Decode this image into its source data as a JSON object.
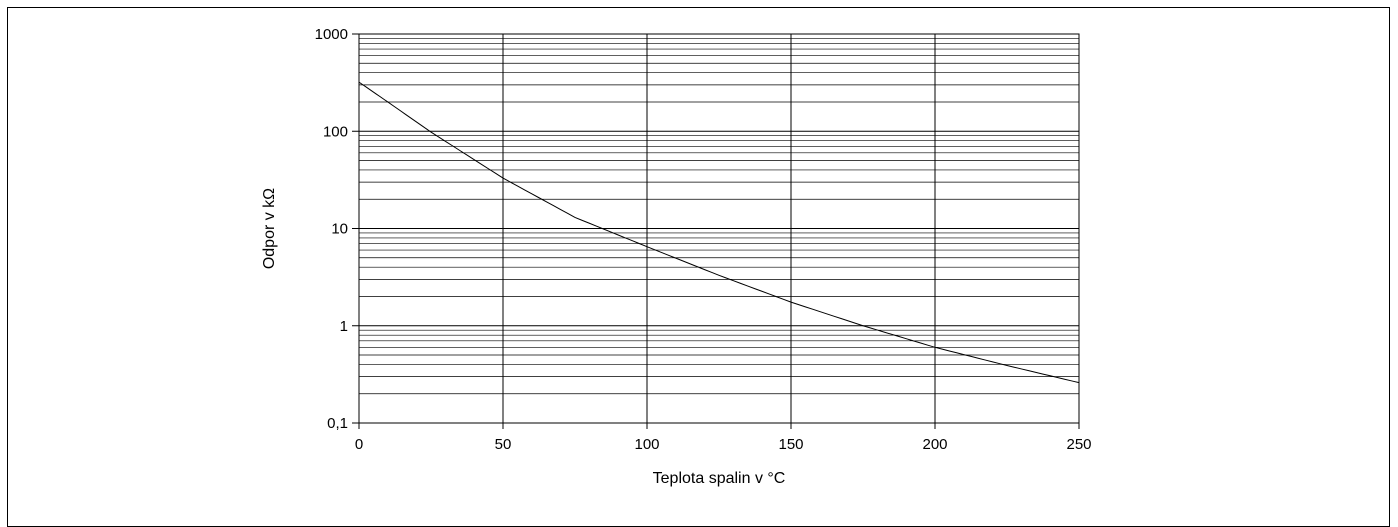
{
  "chart_data": {
    "type": "line",
    "xlabel": "Teplota spalin v °C",
    "ylabel": "Odpor v kΩ",
    "y_scale": "log",
    "xlim": [
      0,
      250
    ],
    "ylim": [
      0.1,
      1000
    ],
    "x_ticks": [
      "0",
      "50",
      "100",
      "150",
      "200",
      "250"
    ],
    "y_ticks": [
      "0,1",
      "1",
      "10",
      "100",
      "1000"
    ],
    "grid": true,
    "series": [
      {
        "x": [
          0,
          10,
          25,
          50,
          75,
          100,
          125,
          150,
          175,
          200,
          225,
          250
        ],
        "y": [
          320,
          200,
          98,
          33,
          13,
          6.5,
          3.3,
          1.75,
          1.0,
          0.6,
          0.39,
          0.26
        ]
      }
    ],
    "colors": {
      "line": "#000000",
      "grid": "#000000"
    }
  }
}
